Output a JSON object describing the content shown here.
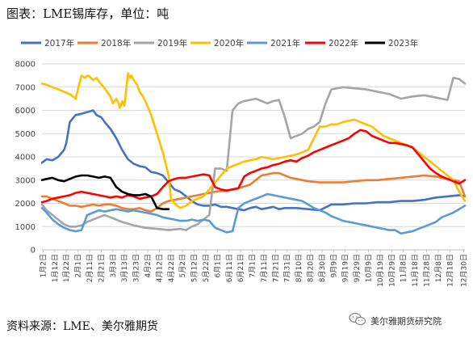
{
  "figure_title": "图表：LME锡库存，单位：吨",
  "source_note": "资料来源：LME、美尔雅期货",
  "watermark": {
    "text": "美尔雅期货研究院",
    "icon": "wechat-icon"
  },
  "chart_data": {
    "type": "line",
    "title": "",
    "xlabel": "",
    "ylabel": "",
    "ylim": [
      0,
      8000
    ],
    "yticks": [
      0,
      1000,
      2000,
      3000,
      4000,
      5000,
      6000,
      7000,
      8000
    ],
    "xlim": [
      1,
      365
    ],
    "xtick_labels": [
      "1月2日",
      "1月12日",
      "1月22日",
      "2月1日",
      "2月11日",
      "2月21日",
      "3月3日",
      "3月13日",
      "3月23日",
      "4月2日",
      "4月12日",
      "4月22日",
      "5月2日",
      "5月12日",
      "5月22日",
      "6月1日",
      "6月11日",
      "6月21日",
      "7月1日",
      "7月11日",
      "7月21日",
      "7月31日",
      "8月10日",
      "8月20日",
      "8月30日",
      "9月9日",
      "9月19日",
      "9月29日",
      "10月9日",
      "10月19日",
      "10月29日",
      "11月8日",
      "11月18日",
      "11月28日",
      "12月8日",
      "12月18日",
      "12月30日"
    ],
    "xtick_days": [
      2,
      12,
      22,
      32,
      42,
      52,
      62,
      72,
      82,
      92,
      102,
      112,
      122,
      132,
      142,
      152,
      162,
      172,
      182,
      192,
      202,
      212,
      222,
      232,
      242,
      252,
      262,
      272,
      282,
      292,
      302,
      312,
      322,
      332,
      342,
      352,
      364
    ],
    "grid": true,
    "legend_position": "top",
    "series": [
      {
        "name": "2017年",
        "color": "#4472C4",
        "x": [
          1,
          5,
          10,
          15,
          20,
          22,
          25,
          30,
          35,
          38,
          42,
          45,
          48,
          52,
          55,
          60,
          65,
          70,
          75,
          80,
          85,
          90,
          95,
          100,
          105,
          110,
          115,
          120,
          125,
          130,
          135,
          140,
          145,
          150,
          155,
          160,
          165,
          170,
          175,
          180,
          185,
          190,
          195,
          200,
          205,
          210,
          215,
          220,
          230,
          240,
          250,
          260,
          270,
          280,
          290,
          300,
          310,
          320,
          330,
          340,
          350,
          360,
          365
        ],
        "y": [
          3750,
          3900,
          3850,
          4000,
          4300,
          4600,
          5500,
          5800,
          5850,
          5900,
          5950,
          6000,
          5800,
          5700,
          5500,
          5200,
          4800,
          4300,
          3900,
          3700,
          3600,
          3550,
          3350,
          3300,
          3200,
          2900,
          2600,
          2500,
          2300,
          2100,
          1950,
          1900,
          1900,
          1950,
          1850,
          1850,
          1800,
          1750,
          1700,
          1800,
          1850,
          1750,
          1800,
          1850,
          1750,
          1800,
          1800,
          1800,
          1750,
          1700,
          1950,
          1950,
          2000,
          2000,
          2050,
          2050,
          2100,
          2100,
          2150,
          2250,
          2300,
          2350,
          2300
        ]
      },
      {
        "name": "2018年",
        "color": "#ED7D31",
        "x": [
          1,
          5,
          10,
          15,
          20,
          25,
          30,
          35,
          40,
          45,
          50,
          55,
          60,
          65,
          70,
          75,
          80,
          85,
          90,
          95,
          100,
          105,
          110,
          115,
          120,
          130,
          140,
          150,
          160,
          170,
          180,
          190,
          200,
          205,
          210,
          215,
          220,
          230,
          240,
          250,
          260,
          270,
          280,
          290,
          300,
          310,
          320,
          330,
          340,
          350,
          360,
          365
        ],
        "y": [
          2300,
          2300,
          2200,
          2100,
          2000,
          1900,
          1900,
          1850,
          1900,
          1950,
          1900,
          1950,
          1950,
          1900,
          1800,
          1750,
          1750,
          1800,
          1700,
          1650,
          1800,
          2000,
          2100,
          2150,
          2200,
          2300,
          2400,
          2500,
          2550,
          2650,
          2800,
          3200,
          3300,
          3300,
          3200,
          3100,
          3050,
          2950,
          2900,
          2900,
          2900,
          2950,
          3000,
          3000,
          3050,
          3100,
          3150,
          3200,
          3150,
          3050,
          2950,
          2300
        ]
      },
      {
        "name": "2019年",
        "color": "#A5A5A5",
        "x": [
          1,
          5,
          10,
          15,
          20,
          25,
          30,
          35,
          40,
          45,
          50,
          55,
          60,
          70,
          80,
          90,
          100,
          110,
          120,
          125,
          130,
          135,
          140,
          145,
          150,
          155,
          160,
          165,
          170,
          175,
          180,
          185,
          190,
          195,
          200,
          205,
          210,
          215,
          220,
          225,
          230,
          235,
          240,
          245,
          250,
          260,
          270,
          280,
          290,
          300,
          310,
          320,
          330,
          340,
          345,
          350,
          355,
          360,
          365
        ],
        "y": [
          1950,
          1700,
          1500,
          1300,
          1100,
          1000,
          1000,
          1050,
          1200,
          1300,
          1400,
          1500,
          1400,
          1200,
          1050,
          950,
          900,
          850,
          900,
          850,
          1000,
          1100,
          1300,
          1500,
          3500,
          3500,
          3400,
          6000,
          6300,
          6400,
          6450,
          6500,
          6400,
          6300,
          6400,
          6450,
          5700,
          4800,
          4900,
          5000,
          5200,
          5300,
          5500,
          6300,
          6900,
          7000,
          6950,
          6900,
          6800,
          6700,
          6500,
          6600,
          6650,
          6550,
          6500,
          6450,
          7400,
          7350,
          7150
        ]
      },
      {
        "name": "2020年",
        "color": "#FFC000",
        "x": [
          1,
          5,
          10,
          15,
          20,
          25,
          30,
          35,
          38,
          40,
          42,
          45,
          48,
          50,
          55,
          60,
          62,
          65,
          67,
          68,
          70,
          72,
          75,
          77,
          78,
          80,
          83,
          85,
          88,
          90,
          95,
          100,
          105,
          110,
          112,
          115,
          120,
          125,
          130,
          135,
          140,
          145,
          150,
          155,
          160,
          165,
          170,
          175,
          180,
          185,
          190,
          195,
          200,
          205,
          210,
          215,
          220,
          225,
          230,
          235,
          240,
          245,
          250,
          255,
          260,
          265,
          270,
          275,
          280,
          285,
          290,
          295,
          300,
          305,
          310,
          315,
          320,
          325,
          330,
          335,
          340,
          345,
          350,
          355,
          360,
          365
        ],
        "y": [
          7150,
          7100,
          7000,
          6900,
          6800,
          6700,
          6500,
          7500,
          7400,
          7500,
          7450,
          7300,
          7400,
          7250,
          6950,
          6600,
          6300,
          6500,
          6300,
          6100,
          6400,
          6200,
          7600,
          7400,
          7500,
          7300,
          7100,
          6800,
          6600,
          6400,
          5800,
          5000,
          4200,
          3200,
          2200,
          2000,
          1800,
          1900,
          2100,
          2200,
          2300,
          2600,
          2900,
          3200,
          3500,
          3600,
          3700,
          3800,
          3850,
          3900,
          4000,
          3950,
          3900,
          3950,
          4000,
          4050,
          4100,
          4200,
          4300,
          4800,
          5300,
          5300,
          5400,
          5400,
          5500,
          5550,
          5600,
          5500,
          5400,
          5300,
          5100,
          4900,
          4800,
          4700,
          4600,
          4500,
          4400,
          4200,
          4000,
          3800,
          3600,
          3400,
          3200,
          3000,
          2500,
          2100
        ]
      },
      {
        "name": "2021年",
        "color": "#5B9BD5",
        "x": [
          1,
          5,
          10,
          15,
          20,
          25,
          30,
          35,
          40,
          45,
          50,
          55,
          60,
          65,
          70,
          75,
          80,
          85,
          90,
          95,
          100,
          105,
          110,
          115,
          120,
          125,
          130,
          135,
          140,
          145,
          150,
          155,
          160,
          165,
          170,
          175,
          180,
          185,
          190,
          195,
          200,
          205,
          210,
          215,
          220,
          225,
          230,
          235,
          240,
          245,
          250,
          255,
          260,
          265,
          270,
          275,
          280,
          285,
          290,
          295,
          300,
          305,
          310,
          315,
          320,
          325,
          330,
          335,
          340,
          345,
          350,
          355,
          360,
          365
        ],
        "y": [
          1800,
          1600,
          1300,
          1100,
          950,
          850,
          800,
          850,
          1500,
          1600,
          1700,
          1650,
          1700,
          1750,
          1700,
          1650,
          1700,
          1650,
          1600,
          1550,
          1500,
          1400,
          1350,
          1300,
          1250,
          1250,
          1300,
          1250,
          1300,
          1250,
          950,
          850,
          750,
          800,
          1800,
          2000,
          2100,
          2200,
          2300,
          2400,
          2350,
          2300,
          2250,
          2200,
          2150,
          2100,
          1950,
          1800,
          1700,
          1600,
          1450,
          1350,
          1250,
          1200,
          1150,
          1100,
          1050,
          1000,
          950,
          900,
          850,
          850,
          700,
          750,
          800,
          900,
          1000,
          1100,
          1200,
          1400,
          1500,
          1600,
          1750,
          1900
        ]
      },
      {
        "name": "2022年",
        "color": "#FF0000",
        "x": [
          1,
          5,
          10,
          15,
          20,
          25,
          30,
          35,
          40,
          45,
          50,
          55,
          60,
          65,
          70,
          75,
          80,
          85,
          90,
          95,
          100,
          105,
          110,
          115,
          120,
          125,
          130,
          135,
          140,
          145,
          150,
          155,
          160,
          165,
          170,
          175,
          180,
          185,
          190,
          195,
          200,
          205,
          210,
          215,
          220,
          225,
          230,
          235,
          240,
          245,
          250,
          255,
          260,
          265,
          270,
          275,
          280,
          285,
          290,
          295,
          300,
          305,
          310,
          315,
          320,
          325,
          330,
          335,
          340,
          345,
          350,
          355,
          360,
          365
        ],
        "y": [
          2050,
          2100,
          2200,
          2250,
          2300,
          2350,
          2450,
          2500,
          2450,
          2400,
          2350,
          2300,
          2250,
          2300,
          2250,
          2350,
          2300,
          2200,
          2250,
          2300,
          2400,
          2700,
          2950,
          3050,
          3100,
          3100,
          3150,
          3200,
          3250,
          3200,
          2700,
          2600,
          2550,
          2600,
          2650,
          3150,
          3300,
          3400,
          3500,
          3550,
          3650,
          3700,
          3800,
          3850,
          3800,
          3950,
          4050,
          4200,
          4300,
          4400,
          4500,
          4600,
          4700,
          4800,
          5000,
          5150,
          5100,
          4900,
          4800,
          4700,
          4600,
          4600,
          4550,
          4500,
          4400,
          4100,
          3800,
          3500,
          3300,
          3150,
          3050,
          2950,
          2850,
          3000
        ]
      },
      {
        "name": "2023年",
        "color": "#000000",
        "x": [
          1,
          5,
          10,
          15,
          20,
          25,
          30,
          35,
          40,
          45,
          50,
          55,
          60,
          65,
          70,
          75,
          80,
          85,
          90,
          95,
          100,
          105,
          110
        ],
        "y": [
          3000,
          3050,
          3100,
          3000,
          2950,
          3050,
          3150,
          3200,
          3200,
          3150,
          3100,
          3150,
          3100,
          2700,
          2500,
          2400,
          2350,
          2350,
          2400,
          2300,
          1800,
          1750,
          1750
        ]
      }
    ]
  }
}
